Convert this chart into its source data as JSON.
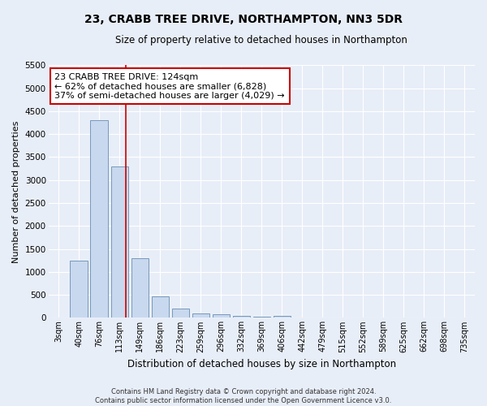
{
  "title": "23, CRABB TREE DRIVE, NORTHAMPTON, NN3 5DR",
  "subtitle": "Size of property relative to detached houses in Northampton",
  "xlabel": "Distribution of detached houses by size in Northampton",
  "ylabel": "Number of detached properties",
  "footer_line1": "Contains HM Land Registry data © Crown copyright and database right 2024.",
  "footer_line2": "Contains public sector information licensed under the Open Government Licence v3.0.",
  "categories": [
    "3sqm",
    "40sqm",
    "76sqm",
    "113sqm",
    "149sqm",
    "186sqm",
    "223sqm",
    "259sqm",
    "296sqm",
    "332sqm",
    "369sqm",
    "406sqm",
    "442sqm",
    "479sqm",
    "515sqm",
    "552sqm",
    "589sqm",
    "625sqm",
    "662sqm",
    "698sqm",
    "735sqm"
  ],
  "values": [
    0,
    1250,
    4300,
    3300,
    1300,
    475,
    200,
    100,
    75,
    50,
    30,
    50,
    0,
    0,
    0,
    0,
    0,
    0,
    0,
    0,
    0
  ],
  "bar_color": "#c8d8ee",
  "bar_edge_color": "#7799bb",
  "background_color": "#e8eef8",
  "annotation_text": "23 CRABB TREE DRIVE: 124sqm\n← 62% of detached houses are smaller (6,828)\n37% of semi-detached houses are larger (4,029) →",
  "annotation_box_color": "#ffffff",
  "annotation_box_edge": "#cc0000",
  "ylim": [
    0,
    5500
  ],
  "yticks": [
    0,
    500,
    1000,
    1500,
    2000,
    2500,
    3000,
    3500,
    4000,
    4500,
    5000,
    5500
  ]
}
